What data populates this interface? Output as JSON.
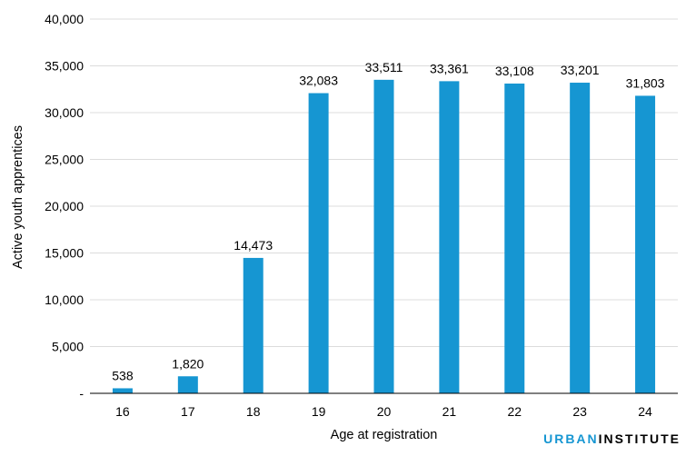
{
  "chart_data": {
    "type": "bar",
    "categories": [
      "16",
      "17",
      "18",
      "19",
      "20",
      "21",
      "22",
      "23",
      "24"
    ],
    "values": [
      538,
      1820,
      14473,
      32083,
      33511,
      33361,
      33108,
      33201,
      31803
    ],
    "value_labels": [
      "538",
      "1,820",
      "14,473",
      "32,083",
      "33,511",
      "33,361",
      "33,108",
      "33,201",
      "31,803"
    ],
    "title": "",
    "xlabel": "Age at registration",
    "ylabel": "Active youth apprentices",
    "ylim": [
      0,
      40000
    ],
    "yticks": [
      0,
      5000,
      10000,
      15000,
      20000,
      25000,
      30000,
      35000,
      40000
    ],
    "ytick_labels": [
      "-",
      "5,000",
      "10,000",
      "15,000",
      "20,000",
      "25,000",
      "30,000",
      "35,000",
      "40,000"
    ],
    "grid": true,
    "bar_color": "#1696d2"
  },
  "branding": {
    "logo_part1": "URBAN",
    "logo_part2": "INSTITUTE",
    "logo_color": "#1696d2"
  }
}
